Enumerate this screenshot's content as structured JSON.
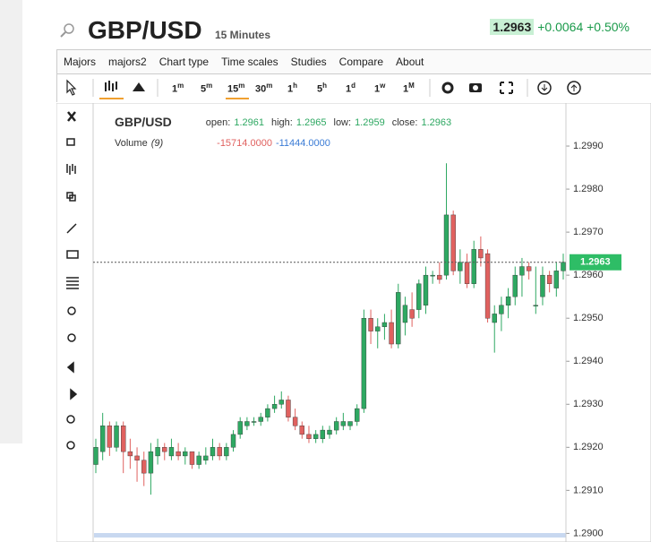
{
  "header": {
    "symbol": "GBP/USD",
    "interval": "15 Minutes",
    "price": "1.2963",
    "change": "+0.0064",
    "change_pct": "+0.50%"
  },
  "menu": [
    "Majors",
    "majors2",
    "Chart type",
    "Time scales",
    "Studies",
    "Compare",
    "About"
  ],
  "intervals": [
    {
      "n": "1",
      "u": "m"
    },
    {
      "n": "5",
      "u": "m"
    },
    {
      "n": "15",
      "u": "m"
    },
    {
      "n": "30",
      "u": "m"
    },
    {
      "n": "1",
      "u": "h"
    },
    {
      "n": "5",
      "u": "h"
    },
    {
      "n": "1",
      "u": "d"
    },
    {
      "n": "1",
      "u": "w"
    },
    {
      "n": "1",
      "u": "M"
    }
  ],
  "chart_data": {
    "type": "candlestick",
    "title": "GBP/USD",
    "legend": [
      {
        "label": "open:",
        "value": 1.2961
      },
      {
        "label": "high:",
        "value": 1.2965
      },
      {
        "label": "low:",
        "value": 1.2959
      },
      {
        "label": "close:",
        "value": 1.2963
      }
    ],
    "volume_label": "Volume",
    "volume_period": "(9)",
    "volume_values": [
      "-15714.0000",
      "-11444.0000"
    ],
    "up_color": "#2ea862",
    "down_color": "#e0615f",
    "open": [
      1.2916,
      1.2919,
      1.2925,
      1.292,
      1.2925,
      1.2919,
      1.2918,
      1.2917,
      1.2914,
      1.2918,
      1.292,
      1.2918,
      1.2919,
      1.2918,
      1.2919,
      1.2916,
      1.2917,
      1.2918,
      1.292,
      1.2918,
      1.292,
      1.2923,
      1.2925,
      1.2926,
      1.2926,
      1.2927,
      1.2929,
      1.293,
      1.2931,
      1.2927,
      1.2925,
      1.2923,
      1.2922,
      1.2922,
      1.2923,
      1.2924,
      1.2925,
      1.2925,
      1.2926,
      1.2929,
      1.295,
      1.2947,
      1.2948,
      1.2949,
      1.2944,
      1.2949,
      1.2952,
      1.2952,
      1.2953,
      1.296,
      1.296,
      1.296,
      1.2974,
      1.2961,
      1.2963,
      1.2958,
      1.2966,
      1.2965,
      1.2949,
      1.2951,
      1.2953,
      1.2955,
      1.296,
      1.2962,
      1.2953,
      1.2955,
      1.296,
      1.2957,
      1.2961
    ],
    "high": [
      1.2922,
      1.2928,
      1.2926,
      1.2926,
      1.2926,
      1.2922,
      1.292,
      1.2919,
      1.2921,
      1.2922,
      1.2921,
      1.2922,
      1.2921,
      1.292,
      1.2919,
      1.2919,
      1.292,
      1.2922,
      1.2921,
      1.2921,
      1.2924,
      1.2927,
      1.2927,
      1.2927,
      1.2928,
      1.293,
      1.2932,
      1.2933,
      1.2932,
      1.2929,
      1.2926,
      1.2925,
      1.2924,
      1.2925,
      1.2925,
      1.2927,
      1.2928,
      1.2926,
      1.293,
      1.2952,
      1.2952,
      1.295,
      1.2951,
      1.2952,
      1.2958,
      1.2955,
      1.2956,
      1.2959,
      1.2962,
      1.2961,
      1.2963,
      1.2986,
      1.2975,
      1.2966,
      1.2965,
      1.2968,
      1.2969,
      1.2966,
      1.2953,
      1.2955,
      1.2957,
      1.2962,
      1.2964,
      1.2963,
      1.2962,
      1.2962,
      1.2961,
      1.2963,
      1.2965
    ],
    "low": [
      1.2914,
      1.2917,
      1.2918,
      1.2919,
      1.2914,
      1.2915,
      1.2912,
      1.2911,
      1.2909,
      1.2916,
      1.2917,
      1.2917,
      1.2917,
      1.2916,
      1.2915,
      1.2915,
      1.2916,
      1.2917,
      1.2917,
      1.2917,
      1.2919,
      1.2922,
      1.2924,
      1.2925,
      1.2925,
      1.2926,
      1.2928,
      1.2929,
      1.2926,
      1.2924,
      1.2922,
      1.2921,
      1.2921,
      1.2921,
      1.2922,
      1.2923,
      1.2924,
      1.2924,
      1.2925,
      1.2928,
      1.2944,
      1.2943,
      1.2945,
      1.2943,
      1.2943,
      1.2946,
      1.2948,
      1.295,
      1.2951,
      1.2958,
      1.2958,
      1.2959,
      1.296,
      1.2958,
      1.2957,
      1.2957,
      1.2962,
      1.2949,
      1.2942,
      1.2947,
      1.295,
      1.2953,
      1.2955,
      1.2959,
      1.2951,
      1.2953,
      1.2956,
      1.2955,
      1.2959
    ],
    "close": [
      1.292,
      1.2925,
      1.292,
      1.2925,
      1.2919,
      1.2918,
      1.2917,
      1.2914,
      1.2919,
      1.292,
      1.2919,
      1.292,
      1.2918,
      1.2919,
      1.2916,
      1.2918,
      1.2918,
      1.292,
      1.2918,
      1.292,
      1.2923,
      1.2926,
      1.2926,
      1.2926,
      1.2927,
      1.2929,
      1.293,
      1.2931,
      1.2927,
      1.2925,
      1.2923,
      1.2922,
      1.2923,
      1.2924,
      1.2924,
      1.2926,
      1.2926,
      1.2926,
      1.2929,
      1.295,
      1.2947,
      1.2948,
      1.2949,
      1.2944,
      1.2956,
      1.2953,
      1.295,
      1.2958,
      1.296,
      1.296,
      1.2959,
      1.2974,
      1.2961,
      1.2963,
      1.2958,
      1.2966,
      1.2964,
      1.295,
      1.2951,
      1.2953,
      1.2955,
      1.296,
      1.2962,
      1.2961,
      1.2953,
      1.296,
      1.2958,
      1.2961,
      1.2963
    ],
    "last": 1.2963,
    "last_color": "#2ebd66",
    "ylim": [
      1.2898,
      1.3
    ],
    "yticks": [
      {
        "value": 1.29,
        "label": "1.2900"
      },
      {
        "value": 1.291,
        "label": "1.2910"
      },
      {
        "value": 1.292,
        "label": "1.2920"
      },
      {
        "value": 1.293,
        "label": "1.2930"
      },
      {
        "value": 1.294,
        "label": "1.2940"
      },
      {
        "value": 1.295,
        "label": "1.2950"
      },
      {
        "value": 1.296,
        "label": "1.2960"
      },
      {
        "value": 1.297,
        "label": "1.2970"
      },
      {
        "value": 1.298,
        "label": "1.2980"
      },
      {
        "value": 1.299,
        "label": "1.2990"
      }
    ]
  }
}
